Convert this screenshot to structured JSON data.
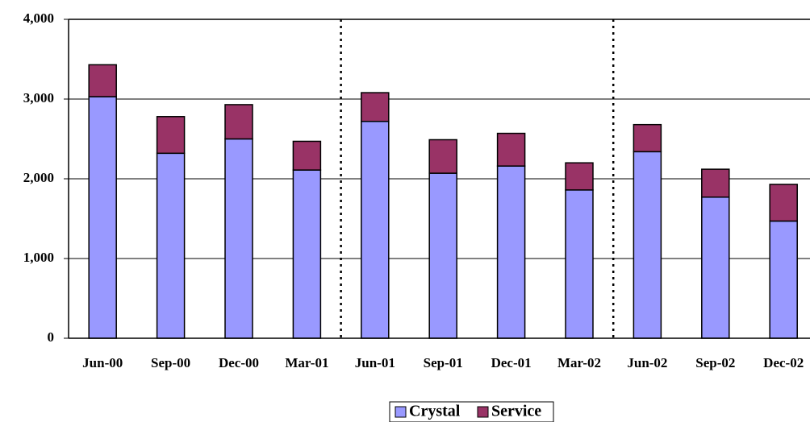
{
  "chart_data": {
    "type": "stacked_bar",
    "categories": [
      "Jun-00",
      "Sep-00",
      "Dec-00",
      "Mar-01",
      "Jun-01",
      "Sep-01",
      "Dec-01",
      "Mar-02",
      "Jun-02",
      "Sep-02",
      "Dec-02"
    ],
    "series": [
      {
        "name": "Crystal",
        "color": "#9999ff",
        "values": [
          3030,
          2320,
          2500,
          2110,
          2720,
          2070,
          2160,
          1860,
          2340,
          1770,
          1470
        ]
      },
      {
        "name": "Service",
        "color": "#993366",
        "values": [
          400,
          460,
          430,
          360,
          360,
          420,
          410,
          340,
          340,
          350,
          460
        ]
      }
    ],
    "ylim": [
      0,
      4000
    ],
    "yticks": [
      0,
      {
        "value": 1000,
        "label": "1,000"
      },
      {
        "value": 2000,
        "label": "2,000"
      },
      {
        "value": 3000,
        "label": "3,000"
      },
      {
        "value": 4000,
        "label": "4,000"
      }
    ],
    "grid": true,
    "legend": "bottom"
  }
}
